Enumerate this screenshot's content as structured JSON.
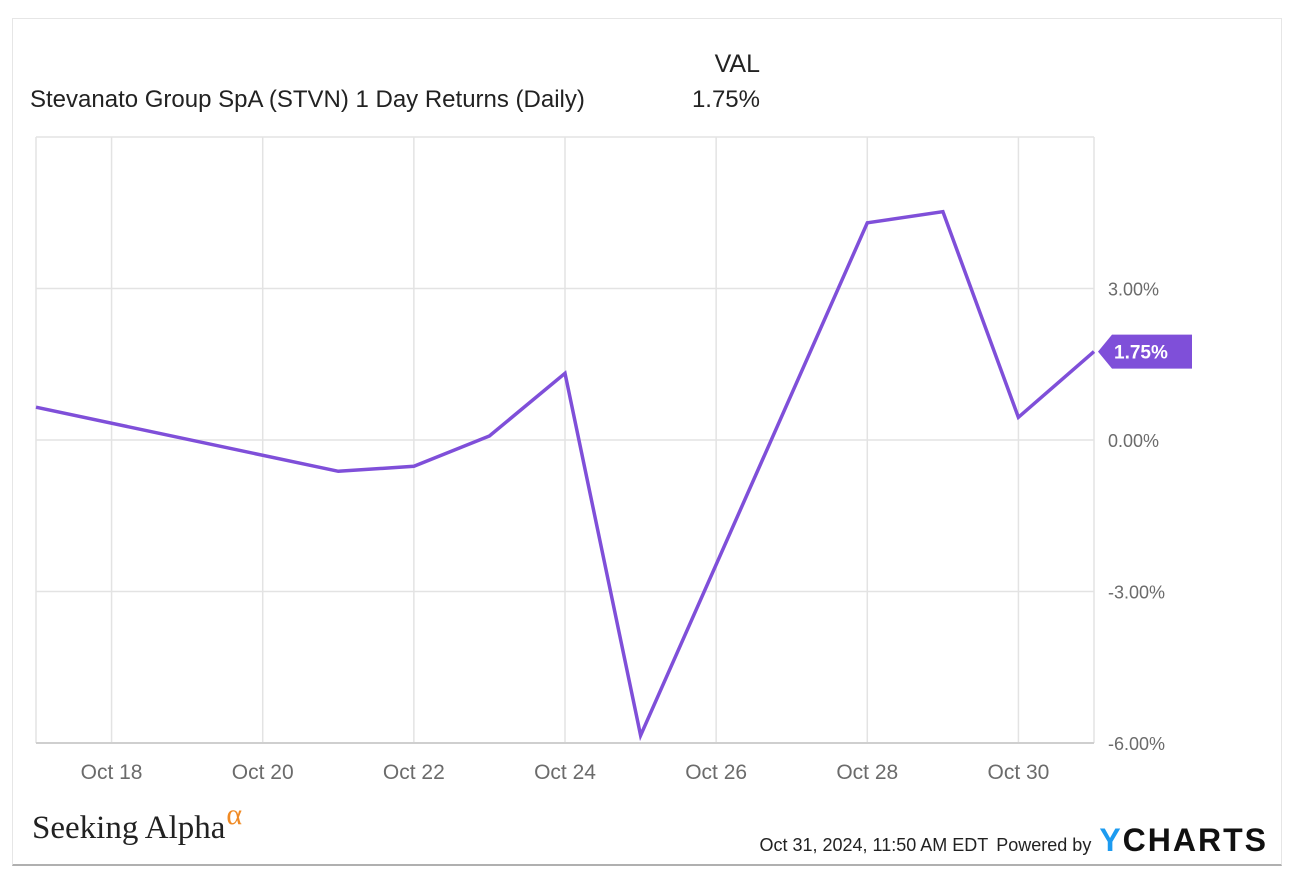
{
  "legend": {
    "column_header": "VAL",
    "series_label": "Stevanato Group SpA (STVN) 1 Day Returns (Daily)",
    "series_value": "1.75%"
  },
  "colors": {
    "line": "#7f4fd9",
    "grid": "#e3e3e3",
    "axis": "#cfcfcf",
    "ycharts_y": "#1d9bf0",
    "alpha": "#f08a24"
  },
  "footer": {
    "brand": "Seeking Alpha",
    "brand_mark": "α",
    "timestamp": "Oct 31, 2024, 11:50 AM EDT",
    "powered_by": "Powered by",
    "ycharts_y": "Y",
    "ycharts_rest": "CHARTS"
  },
  "chart_data": {
    "type": "line",
    "x": [
      "2024-10-17",
      "2024-10-21",
      "2024-10-22",
      "2024-10-23",
      "2024-10-24",
      "2024-10-25",
      "2024-10-28",
      "2024-10-29",
      "2024-10-30",
      "2024-10-31"
    ],
    "series": [
      {
        "values": [
          0.65,
          -0.62,
          -0.52,
          0.08,
          1.32,
          -5.85,
          4.3,
          4.52,
          0.45,
          1.75
        ]
      }
    ],
    "last_value_label": "1.75%",
    "xlabel": "",
    "ylabel": "",
    "ylim": [
      -6.0,
      6.0
    ],
    "y_ticks": [
      {
        "value": 3,
        "label": "3.00%"
      },
      {
        "value": 0,
        "label": "0.00%"
      },
      {
        "value": -3,
        "label": "-3.00%"
      },
      {
        "value": -6,
        "label": "-6.00%"
      }
    ],
    "x_ticks": [
      {
        "date": "2024-10-18",
        "label": "Oct 18"
      },
      {
        "date": "2024-10-20",
        "label": "Oct 20"
      },
      {
        "date": "2024-10-22",
        "label": "Oct 22"
      },
      {
        "date": "2024-10-24",
        "label": "Oct 24"
      },
      {
        "date": "2024-10-26",
        "label": "Oct 26"
      },
      {
        "date": "2024-10-28",
        "label": "Oct 28"
      },
      {
        "date": "2024-10-30",
        "label": "Oct 30"
      }
    ],
    "x_range": [
      "2024-10-17",
      "2024-10-31"
    ],
    "grid": true,
    "legend_position": "top-left"
  }
}
